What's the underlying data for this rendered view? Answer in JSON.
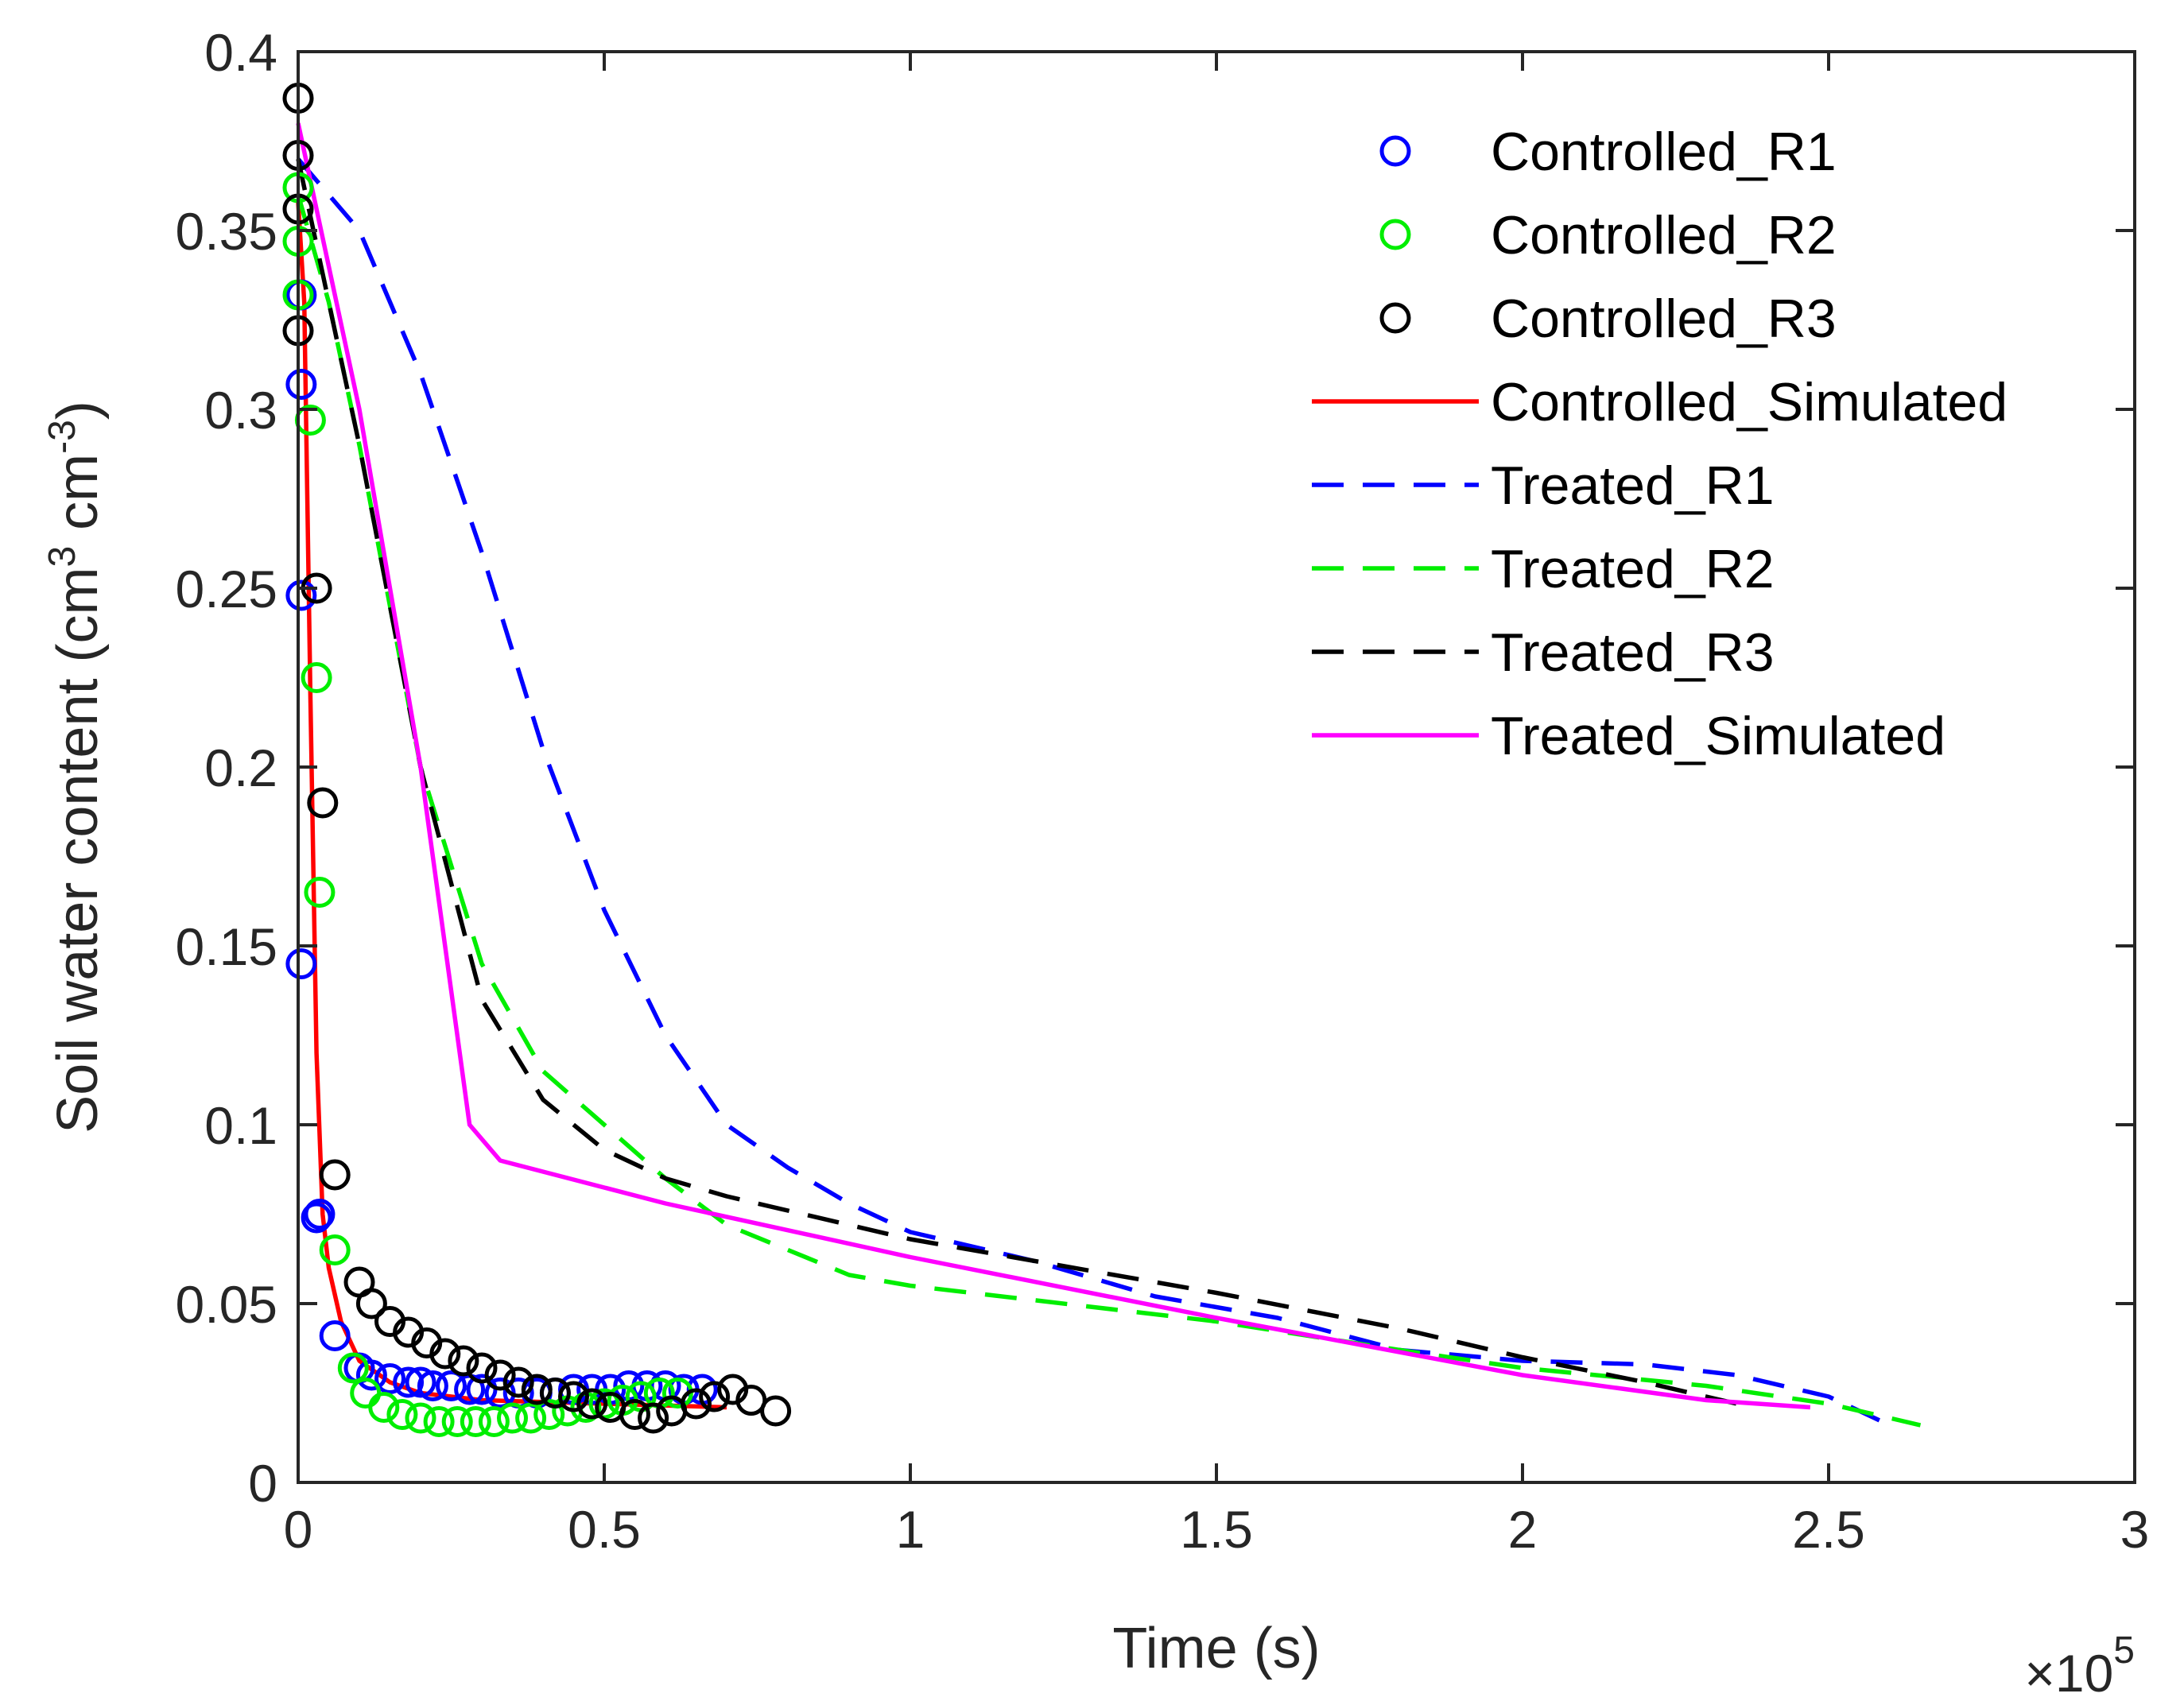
{
  "chart_data": {
    "type": "scatter",
    "title": "",
    "xlabel": "Time (s)",
    "ylabel_main": "Soil water content (cm",
    "ylabel_sup1": "3",
    "ylabel_mid": " cm",
    "ylabel_sup2": "-3",
    "ylabel_end": ")",
    "xlim": [
      0,
      3
    ],
    "ylim": [
      0,
      0.4
    ],
    "x_exponent_base": "×10",
    "x_exponent_power": "5",
    "x_ticks": [
      0,
      0.5,
      1,
      1.5,
      2,
      2.5,
      3
    ],
    "x_tick_labels": [
      "0",
      "0.5",
      "1",
      "1.5",
      "2",
      "2.5",
      "3"
    ],
    "y_ticks": [
      0,
      0.05,
      0.1,
      0.15,
      0.2,
      0.25,
      0.3,
      0.35,
      0.4
    ],
    "y_tick_labels": [
      "0",
      "0.05",
      "0.1",
      "0.15",
      "0.2",
      "0.25",
      "0.3",
      "0.35",
      "0.4"
    ],
    "legend_position": "top-right",
    "series": [
      {
        "name": "Controlled_R1",
        "kind": "markers",
        "color": "#0000ff",
        "x": [
          0.005,
          0.005,
          0.005,
          0.005,
          0.03,
          0.035,
          0.06,
          0.1,
          0.12,
          0.15,
          0.18,
          0.2,
          0.22,
          0.25,
          0.28,
          0.3,
          0.33,
          0.36,
          0.39,
          0.42,
          0.45,
          0.48,
          0.51,
          0.54,
          0.57,
          0.6,
          0.63,
          0.66
        ],
        "y": [
          0.332,
          0.307,
          0.248,
          0.145,
          0.074,
          0.075,
          0.041,
          0.032,
          0.03,
          0.029,
          0.028,
          0.028,
          0.027,
          0.027,
          0.026,
          0.026,
          0.025,
          0.025,
          0.025,
          0.025,
          0.026,
          0.026,
          0.026,
          0.027,
          0.027,
          0.027,
          0.026,
          0.026
        ]
      },
      {
        "name": "Controlled_R2",
        "kind": "markers",
        "color": "#00ee00",
        "x": [
          0.0,
          0.0,
          0.0,
          0.02,
          0.03,
          0.035,
          0.06,
          0.09,
          0.11,
          0.14,
          0.17,
          0.2,
          0.23,
          0.26,
          0.29,
          0.32,
          0.35,
          0.38,
          0.41,
          0.44,
          0.47,
          0.5,
          0.53,
          0.56,
          0.59,
          0.62
        ],
        "y": [
          0.362,
          0.347,
          0.332,
          0.297,
          0.225,
          0.165,
          0.065,
          0.032,
          0.025,
          0.021,
          0.019,
          0.018,
          0.017,
          0.017,
          0.017,
          0.017,
          0.018,
          0.018,
          0.019,
          0.02,
          0.021,
          0.022,
          0.023,
          0.024,
          0.025,
          0.025
        ]
      },
      {
        "name": "Controlled_R3",
        "kind": "markers",
        "color": "#000000",
        "x": [
          0.0,
          0.0,
          0.0,
          0.0,
          0.03,
          0.04,
          0.06,
          0.1,
          0.12,
          0.15,
          0.18,
          0.21,
          0.24,
          0.27,
          0.3,
          0.33,
          0.36,
          0.39,
          0.42,
          0.45,
          0.48,
          0.51,
          0.55,
          0.58,
          0.61,
          0.65,
          0.68,
          0.71,
          0.74,
          0.78
        ],
        "y": [
          0.387,
          0.371,
          0.356,
          0.322,
          0.25,
          0.19,
          0.086,
          0.056,
          0.05,
          0.045,
          0.042,
          0.039,
          0.036,
          0.034,
          0.032,
          0.03,
          0.028,
          0.026,
          0.025,
          0.024,
          0.022,
          0.021,
          0.019,
          0.018,
          0.02,
          0.022,
          0.024,
          0.026,
          0.023,
          0.02
        ]
      },
      {
        "name": "Controlled_Simulated",
        "kind": "line",
        "color": "#ff0000",
        "dash": "solid",
        "x": [
          0.0,
          0.01,
          0.02,
          0.03,
          0.04,
          0.05,
          0.07,
          0.1,
          0.15,
          0.2,
          0.3,
          0.5,
          0.7
        ],
        "y": [
          0.358,
          0.33,
          0.22,
          0.12,
          0.075,
          0.06,
          0.045,
          0.034,
          0.028,
          0.025,
          0.023,
          0.022,
          0.021
        ]
      },
      {
        "name": "Treated_R1",
        "kind": "line",
        "color": "#0000ff",
        "dash": "dashed",
        "x": [
          0.0,
          0.1,
          0.2,
          0.3,
          0.4,
          0.5,
          0.6,
          0.7,
          0.8,
          0.9,
          1.0,
          1.2,
          1.4,
          1.6,
          1.8,
          2.0,
          2.2,
          2.35,
          2.5,
          2.6
        ],
        "y": [
          0.37,
          0.35,
          0.31,
          0.26,
          0.205,
          0.16,
          0.125,
          0.1,
          0.088,
          0.078,
          0.07,
          0.062,
          0.052,
          0.046,
          0.037,
          0.034,
          0.033,
          0.03,
          0.024,
          0.016
        ]
      },
      {
        "name": "Treated_R2",
        "kind": "line",
        "color": "#00ee00",
        "dash": "dashed",
        "x": [
          0.0,
          0.05,
          0.1,
          0.15,
          0.2,
          0.3,
          0.4,
          0.5,
          0.6,
          0.7,
          0.9,
          1.0,
          1.2,
          1.5,
          1.8,
          2.0,
          2.3,
          2.5,
          2.65
        ],
        "y": [
          0.36,
          0.33,
          0.29,
          0.245,
          0.2,
          0.145,
          0.115,
          0.1,
          0.085,
          0.072,
          0.058,
          0.055,
          0.051,
          0.045,
          0.037,
          0.032,
          0.027,
          0.022,
          0.016
        ]
      },
      {
        "name": "Treated_R3",
        "kind": "line",
        "color": "#000000",
        "dash": "dashed",
        "x": [
          0.0,
          0.05,
          0.1,
          0.15,
          0.2,
          0.3,
          0.4,
          0.5,
          0.6,
          0.7,
          0.8,
          1.0,
          1.2,
          1.5,
          1.8,
          2.0,
          2.2,
          2.35
        ],
        "y": [
          0.37,
          0.33,
          0.29,
          0.245,
          0.2,
          0.135,
          0.107,
          0.093,
          0.085,
          0.08,
          0.076,
          0.068,
          0.062,
          0.053,
          0.043,
          0.035,
          0.028,
          0.022
        ]
      },
      {
        "name": "Treated_Simulated",
        "kind": "line",
        "color": "#ff00ff",
        "dash": "solid",
        "x": [
          0.0,
          0.1,
          0.2,
          0.28,
          0.33,
          0.6,
          1.0,
          1.5,
          2.0,
          2.3,
          2.47
        ],
        "y": [
          0.38,
          0.3,
          0.2,
          0.1,
          0.09,
          0.078,
          0.063,
          0.046,
          0.03,
          0.023,
          0.021
        ]
      }
    ]
  }
}
